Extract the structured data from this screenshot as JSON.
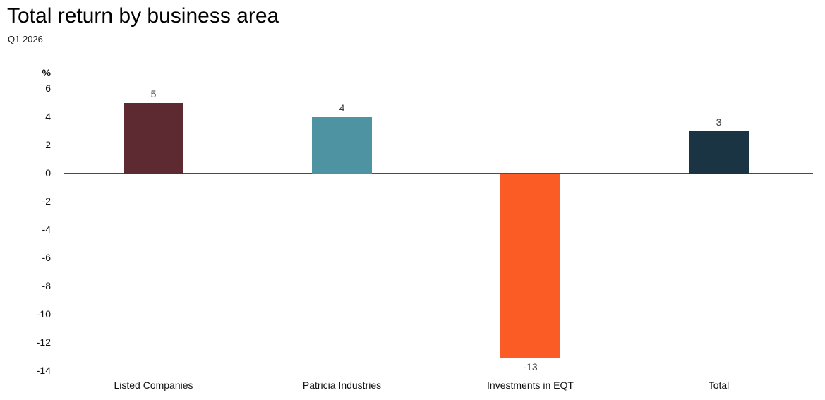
{
  "header": {
    "title": "Total return by business area",
    "subtitle": "Q1 2026"
  },
  "chart_data": {
    "type": "bar",
    "title": "Total return by business area",
    "subtitle": "Q1 2026",
    "unit_label": "%",
    "categories": [
      "Listed Companies",
      "Patricia Industries",
      "Investments in EQT",
      "Total"
    ],
    "values": [
      5,
      4,
      -13,
      3
    ],
    "bar_colors": [
      "#5c2a30",
      "#4d93a2",
      "#fb5c26",
      "#1a3444"
    ],
    "value_labels": [
      "5",
      "4",
      "-13",
      "3"
    ],
    "ylim": [
      -14,
      6
    ],
    "ytick_step": 2,
    "yticks": [
      6,
      4,
      2,
      0,
      -2,
      -4,
      -6,
      -8,
      -10,
      -12,
      -14
    ],
    "grid": false,
    "legend": "none",
    "zero_line_color": "#3c4f63",
    "value_label_color": "#3d3d3d",
    "text_color": "#111111"
  }
}
